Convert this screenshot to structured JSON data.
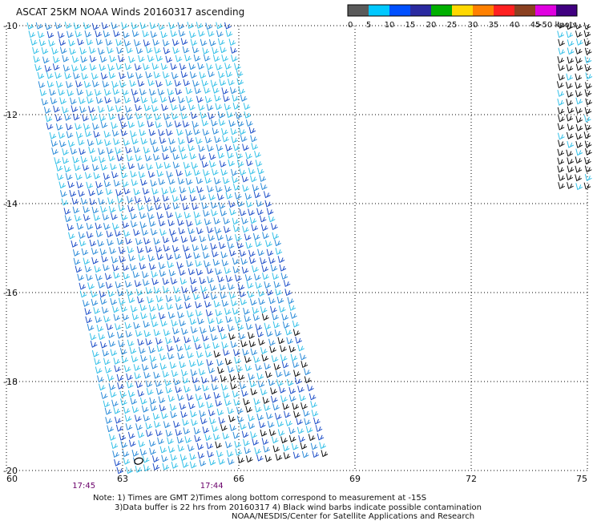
{
  "title": "ASCAT 25KM NOAA Winds 20160317 ascending",
  "legend": {
    "labels": [
      "0",
      "5",
      "10",
      "15",
      "20",
      "25",
      "30",
      "35",
      "40",
      "45",
      ">50 knots"
    ],
    "colors": [
      "#5a5a5a",
      "#00c8ff",
      "#0050ff",
      "#2a2aa0",
      "#00b000",
      "#ffd800",
      "#ff8000",
      "#ff2020",
      "#8a4020",
      "#e000e0",
      "#400080"
    ]
  },
  "axes": {
    "lon_labels": [
      "60",
      "63",
      "66",
      "69",
      "72",
      "75"
    ],
    "lat_labels": [
      "-10",
      "-12",
      "-14",
      "-16",
      "-18",
      "-20"
    ],
    "lon_range": [
      60,
      75
    ],
    "lat_range": [
      -20,
      -10
    ],
    "grid": "dotted"
  },
  "time_labels": [
    {
      "text": "17:45",
      "lon": 62
    },
    {
      "text": "17:44",
      "lon": 65.3
    }
  ],
  "notes": {
    "line1": "Note: 1) Times are GMT 2)Times along bottom correspond to measurement at -15S",
    "line2": "3)Data buffer is 22 hrs from 20160317 4) Black wind barbs indicate possible contamination",
    "credit": "NOAA/NESDIS/Center for Satellite Applications and Research"
  },
  "swaths": [
    {
      "name": "main-swath",
      "top_left": [
        60.6,
        -10
      ],
      "top_right": [
        65.7,
        -10
      ],
      "bottom_left": [
        62.9,
        -20
      ],
      "bottom_right": [
        68.2,
        -19.6
      ]
    },
    {
      "name": "east-swath",
      "top_left": [
        74.3,
        -10
      ],
      "top_right": [
        75,
        -10
      ],
      "bottom_left": [
        74.3,
        -13.6
      ],
      "bottom_right": [
        75,
        -13.6
      ]
    }
  ],
  "barb_colors": {
    "light": "#33c0e8",
    "medium": "#2a8ad8",
    "dark": "#1f4fc8",
    "contaminated": "#111111"
  }
}
